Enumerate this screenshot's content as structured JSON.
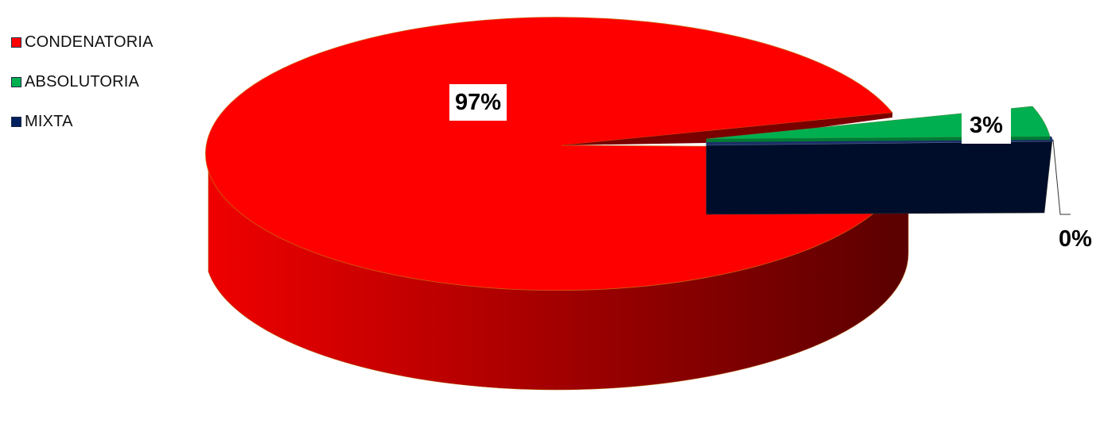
{
  "chart_data": {
    "type": "pie",
    "title": "",
    "categories": [
      "CONDENATORIA",
      "ABSOLUTORIA",
      "MIXTA"
    ],
    "values": [
      97,
      3,
      0
    ],
    "data_labels": [
      "97%",
      "3%",
      "0%"
    ],
    "colors": [
      "#ff0000",
      "#00b050",
      "#002060"
    ],
    "legend": "left"
  }
}
